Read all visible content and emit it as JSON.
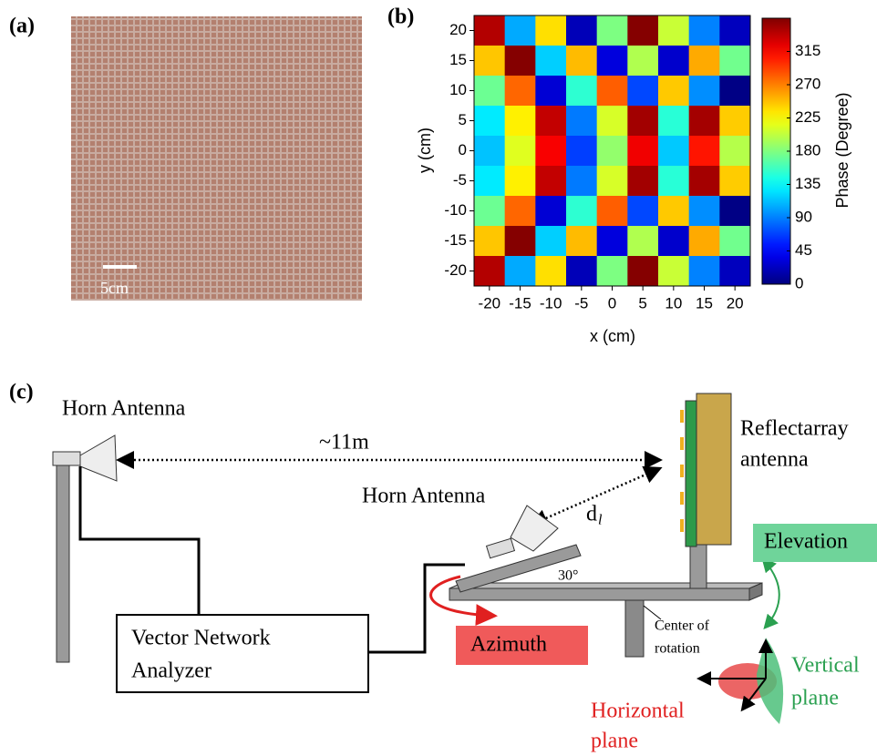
{
  "panels": {
    "a": {
      "label": "(a)",
      "scale_bar": "5cm"
    },
    "b": {
      "label": "(b)"
    },
    "c": {
      "label": "(c)"
    }
  },
  "chart_data": {
    "type": "heatmap",
    "x": [
      -20,
      -15,
      -10,
      -5,
      0,
      5,
      10,
      15,
      20
    ],
    "y": [
      20,
      15,
      10,
      5,
      0,
      -5,
      -10,
      -15,
      -20
    ],
    "z": [
      [
        342,
        105,
        236,
        20,
        179,
        358,
        206,
        91,
        22
      ],
      [
        245,
        358,
        118,
        249,
        33,
        197,
        27,
        255,
        175
      ],
      [
        173,
        279,
        30,
        151,
        282,
        70,
        244,
        95,
        2
      ],
      [
        128,
        230,
        336,
        88,
        211,
        348,
        149,
        347,
        243
      ],
      [
        114,
        214,
        317,
        67,
        187,
        320,
        116,
        308,
        199
      ],
      [
        128,
        230,
        336,
        88,
        211,
        348,
        149,
        347,
        243
      ],
      [
        173,
        279,
        30,
        151,
        282,
        70,
        244,
        95,
        2
      ],
      [
        245,
        358,
        118,
        249,
        33,
        197,
        27,
        255,
        175
      ],
      [
        342,
        105,
        236,
        20,
        179,
        358,
        206,
        91,
        22
      ]
    ],
    "xlim": [
      -22.5,
      22.5
    ],
    "ylim": [
      -22.5,
      22.5
    ],
    "xticks": [
      -20,
      -15,
      -10,
      -5,
      0,
      5,
      10,
      15,
      20
    ],
    "yticks": [
      -20,
      -15,
      -10,
      -5,
      0,
      5,
      10,
      15,
      20
    ],
    "xlabel": "x (cm)",
    "ylabel": "y (cm)",
    "colorbar_label": "Phase (Degree)",
    "zlim": [
      0,
      360
    ],
    "zticks": [
      0,
      45,
      90,
      135,
      180,
      225,
      270,
      315
    ],
    "colormap": "jet"
  },
  "diagram": {
    "horn_antenna_1": "Horn Antenna",
    "distance": "~11m",
    "horn_antenna_2": "Horn Antenna",
    "distance_symbol": "d",
    "distance_subscript": "l",
    "reflectarray_1": "Reflectarray",
    "reflectarray_2": "antenna",
    "elevation": "Elevation",
    "angle": "30°",
    "vna_1": "Vector Network",
    "vna_2": "Analyzer",
    "azimuth": "Azimuth",
    "center_1": "Center of",
    "center_2": "rotation",
    "vertical_1": "Vertical",
    "vertical_2": "plane",
    "horizontal_1": "Horizontal",
    "horizontal_2": "plane"
  }
}
